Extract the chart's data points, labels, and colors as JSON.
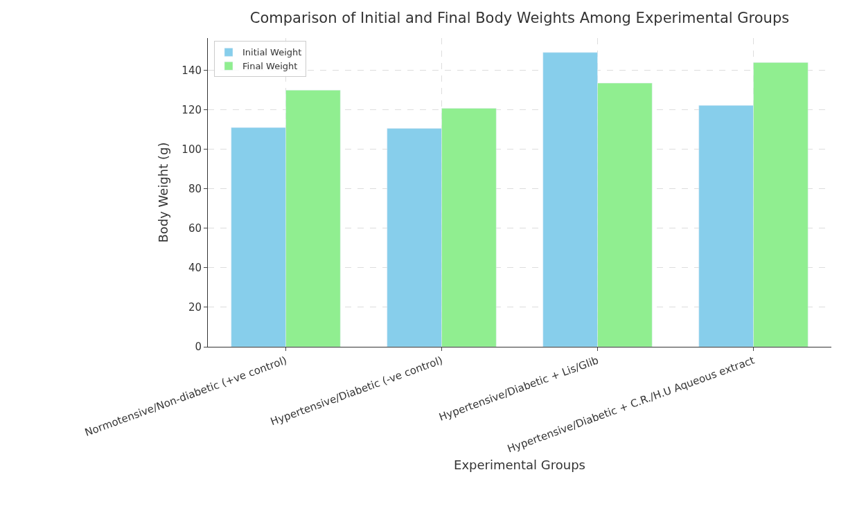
{
  "chart_data": {
    "type": "bar",
    "title": "Comparison of Initial and Final Body Weights Among Experimental Groups",
    "xlabel": "Experimental Groups",
    "ylabel": "Body Weight (g)",
    "categories": [
      "Normotensive/Non-diabetic (+ve control)",
      "Hypertensive/Diabetic (-ve control)",
      "Hypertensive/Diabetic + Lis/Glib",
      "Hypertensive/Diabetic + C.R./H.U Aqueous extract"
    ],
    "series": [
      {
        "name": "Initial Weight",
        "color": "#87ceeb",
        "values": [
          111.1,
          110.6,
          149.1,
          122.3
        ]
      },
      {
        "name": "Final Weight",
        "color": "#90ee90",
        "values": [
          130.0,
          120.8,
          133.6,
          144.0
        ]
      }
    ],
    "ylim": [
      0,
      156.4
    ],
    "yticks": [
      0,
      20,
      40,
      60,
      80,
      100,
      120,
      140
    ],
    "grid": true,
    "legend": "top left"
  }
}
